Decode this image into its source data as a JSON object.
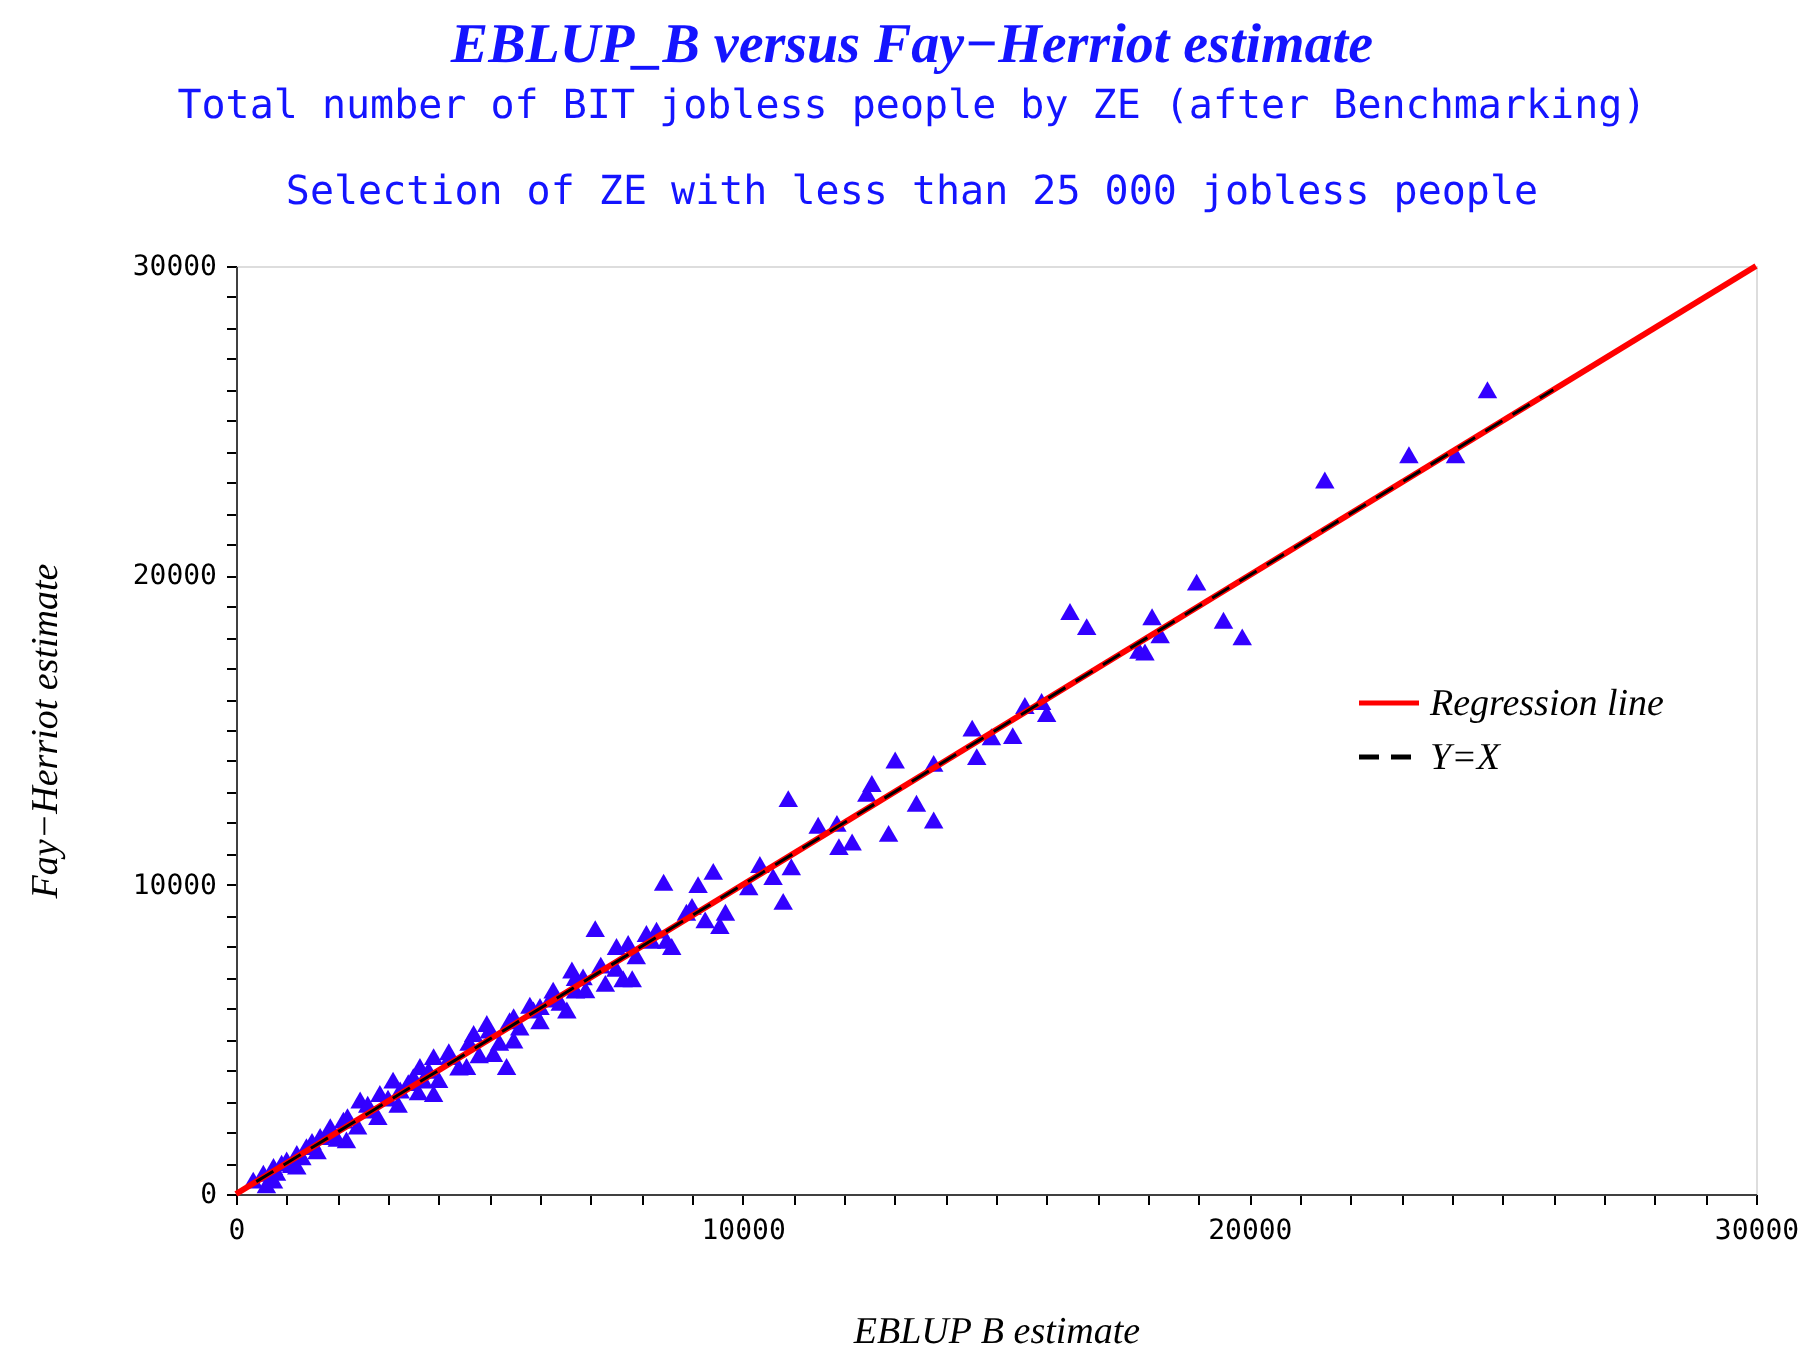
{
  "chart_data": {
    "type": "scatter",
    "title": "EBLUP_B versus Fay−Herriot estimate",
    "subtitle": "Total number of BIT jobless people by ZE (after Benchmarking)\nSelection of ZE with less than 25 000 jobless people",
    "xlabel": "EBLUP B estimate",
    "ylabel": "Fay−Herriot estimate",
    "xlim": [
      0,
      30000
    ],
    "ylim": [
      0,
      30000
    ],
    "xticks": [
      0,
      {
        "value": 1000,
        "label": null
      },
      {
        "value": 2000,
        "label": null
      },
      {
        "value": 3000,
        "label": null
      },
      {
        "value": 4000,
        "label": null
      },
      {
        "value": 5000,
        "label": null
      },
      {
        "value": 6000,
        "label": null
      },
      {
        "value": 7000,
        "label": null
      },
      {
        "value": 8000,
        "label": null
      },
      {
        "value": 9000,
        "label": null
      },
      10000,
      {
        "value": 11000,
        "label": null
      },
      {
        "value": 12000,
        "label": null
      },
      {
        "value": 13000,
        "label": null
      },
      {
        "value": 14000,
        "label": null
      },
      {
        "value": 15000,
        "label": null
      },
      {
        "value": 16000,
        "label": null
      },
      {
        "value": 17000,
        "label": null
      },
      {
        "value": 18000,
        "label": null
      },
      {
        "value": 19000,
        "label": null
      },
      20000,
      {
        "value": 21000,
        "label": null
      },
      {
        "value": 22000,
        "label": null
      },
      {
        "value": 23000,
        "label": null
      },
      {
        "value": 24000,
        "label": null
      },
      {
        "value": 25000,
        "label": null
      },
      {
        "value": 26000,
        "label": null
      },
      {
        "value": 27000,
        "label": null
      },
      {
        "value": 28000,
        "label": null
      },
      {
        "value": 29000,
        "label": null
      },
      30000
    ],
    "yticks": [
      0,
      {
        "value": 1000,
        "label": null
      },
      {
        "value": 2000,
        "label": null
      },
      {
        "value": 3000,
        "label": null
      },
      {
        "value": 4000,
        "label": null
      },
      {
        "value": 5000,
        "label": null
      },
      {
        "value": 6000,
        "label": null
      },
      {
        "value": 7000,
        "label": null
      },
      {
        "value": 8000,
        "label": null
      },
      {
        "value": 9000,
        "label": null
      },
      10000,
      {
        "value": 11000,
        "label": null
      },
      {
        "value": 12000,
        "label": null
      },
      {
        "value": 13000,
        "label": null
      },
      {
        "value": 14000,
        "label": null
      },
      {
        "value": 15000,
        "label": null
      },
      {
        "value": 16000,
        "label": null
      },
      {
        "value": 17000,
        "label": null
      },
      {
        "value": 18000,
        "label": null
      },
      {
        "value": 19000,
        "label": null
      },
      20000,
      {
        "value": 21000,
        "label": null
      },
      {
        "value": 22000,
        "label": null
      },
      {
        "value": 23000,
        "label": null
      },
      {
        "value": 24000,
        "label": null
      },
      {
        "value": 25000,
        "label": null
      },
      {
        "value": 26000,
        "label": null
      },
      {
        "value": 27000,
        "label": null
      },
      {
        "value": 28000,
        "label": null
      },
      {
        "value": 29000,
        "label": null
      },
      30000
    ],
    "grid": false,
    "legend": "right",
    "series": [
      {
        "marker": "triangle",
        "color": "#3300ff",
        "x": [
          24700,
          23150,
          24070,
          21490,
          18960,
          16460,
          16790,
          18080,
          18240,
          17820,
          17940,
          19490,
          19860,
          15570,
          15900,
          16000,
          14530,
          14620,
          14910,
          15330,
          13770,
          13010,
          12550,
          12450,
          13430,
          13770,
          12880,
          10900,
          11490,
          11860,
          11900,
          12160,
          8440,
          9120,
          9420,
          10340,
          10600,
          10960,
          10800,
          10120,
          8890,
          9260,
          9660,
          9550,
          7090,
          7510,
          7740,
          8100,
          8300,
          8600,
          7290,
          7640,
          7820,
          6630,
          6850,
          6260,
          6700,
          6530,
          6000,
          5340,
          5080,
          5480,
          4690,
          4950,
          5480,
          5870,
          3900,
          4220,
          4550,
          3900,
          3700,
          3500,
          3240,
          2840,
          2650,
          2450,
          2120,
          2180,
          1860,
          1660,
          1390,
          1200,
          1000,
          740,
          540,
          340,
          740,
          3630,
          3100,
          800,
          900,
          1100,
          1300,
          1500,
          1600,
          1800,
          2000,
          2200,
          2400,
          2600,
          2800,
          3000,
          3200,
          3400,
          3600,
          3800,
          4000,
          4200,
          4400,
          4600,
          4800,
          5000,
          5200,
          5400,
          5600,
          5800,
          6000,
          6200,
          6400,
          6700,
          6900,
          7200,
          7500,
          7900,
          8200,
          8500,
          9000,
          600,
          1200
        ],
        "values": [
          26000,
          23900,
          23900,
          23080,
          19780,
          18830,
          18340,
          18660,
          18080,
          17580,
          17520,
          18550,
          18010,
          15790,
          15920,
          15530,
          15060,
          14140,
          14780,
          14820,
          13920,
          14030,
          13270,
          12950,
          12630,
          12090,
          11660,
          12780,
          11920,
          11980,
          11230,
          11380,
          10080,
          10000,
          10430,
          10650,
          10260,
          10580,
          9460,
          9930,
          9110,
          8860,
          9110,
          8680,
          8580,
          8000,
          8100,
          8420,
          8530,
          8000,
          6810,
          6960,
          6960,
          7240,
          7020,
          6590,
          6590,
          5950,
          6060,
          4120,
          4540,
          4980,
          5190,
          5510,
          5730,
          5950,
          4440,
          4440,
          4120,
          3250,
          3680,
          3790,
          3360,
          3250,
          2710,
          3040,
          2390,
          1750,
          2180,
          1860,
          1530,
          1310,
          1100,
          890,
          670,
          450,
          450,
          4120,
          3680,
          700,
          1000,
          950,
          1200,
          1700,
          1400,
          1900,
          1800,
          2500,
          2200,
          2900,
          2500,
          3100,
          2900,
          3600,
          3300,
          4000,
          3700,
          4600,
          4100,
          4900,
          4500,
          5300,
          4900,
          5600,
          5400,
          6100,
          5600,
          6300,
          6200,
          7000,
          6600,
          7400,
          7300,
          7700,
          8200,
          8200,
          9300,
          300,
          900
        ]
      },
      {
        "type": "line",
        "name": "Regression line",
        "color": "#ff0000",
        "x": [
          0,
          30000
        ],
        "values": [
          0,
          30000
        ]
      },
      {
        "type": "line",
        "name": "Y=X",
        "color": "#000000",
        "line_style": "dashed",
        "x": [
          400,
          26000
        ],
        "values": [
          400,
          26000
        ]
      }
    ]
  }
}
